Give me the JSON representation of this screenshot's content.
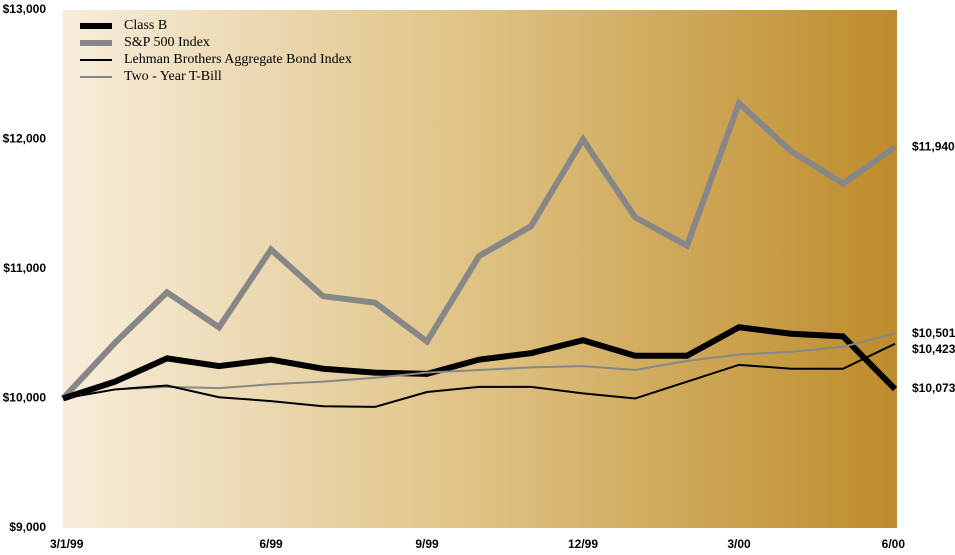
{
  "chart_data": {
    "type": "line",
    "categories": [
      "3/1/99",
      null,
      null,
      null,
      "6/99",
      null,
      null,
      "9/99",
      null,
      null,
      "12/99",
      null,
      null,
      "3/00",
      null,
      null,
      "6/00"
    ],
    "ylim": [
      9000,
      13000
    ],
    "yticks": [
      {
        "value": 9000,
        "label": "$9,000"
      },
      {
        "value": 10000,
        "label": "$10,000"
      },
      {
        "value": 11000,
        "label": "$11,000"
      },
      {
        "value": 12000,
        "label": "$12,000"
      },
      {
        "value": 13000,
        "label": "$13,000"
      }
    ],
    "grid": false,
    "legend": "upper left",
    "series": [
      {
        "name": "Class B",
        "color": "#000000",
        "width": 6,
        "values": [
          10000,
          10130,
          10310,
          10250,
          10300,
          10230,
          10200,
          10190,
          10300,
          10350,
          10450,
          10330,
          10330,
          10550,
          10500,
          10480,
          10073
        ],
        "value_labels": [
          null,
          null,
          null,
          null,
          null,
          null,
          null,
          null,
          null,
          null,
          null,
          null,
          null,
          null,
          null,
          null,
          "$10,073"
        ]
      },
      {
        "name": "S&P 500 Index",
        "color": "#878787",
        "width": 6,
        "values": [
          10000,
          10430,
          10820,
          10550,
          11150,
          10790,
          10740,
          10440,
          11100,
          11330,
          12000,
          11400,
          11180,
          12280,
          11910,
          11660,
          11940
        ],
        "value_labels": [
          null,
          null,
          null,
          null,
          null,
          null,
          null,
          null,
          null,
          null,
          null,
          null,
          null,
          null,
          null,
          null,
          "$11,940"
        ]
      },
      {
        "name": "Lehman Brothers Aggregate Bond Index",
        "color": "#000000",
        "width": 2,
        "values": [
          10000,
          10070,
          10100,
          10010,
          9980,
          9940,
          9935,
          10050,
          10090,
          10090,
          10040,
          10000,
          10130,
          10260,
          10230,
          10230,
          10423
        ],
        "value_labels": [
          null,
          null,
          null,
          null,
          null,
          null,
          null,
          null,
          null,
          null,
          null,
          null,
          null,
          null,
          null,
          null,
          "$10,423"
        ]
      },
      {
        "name": "Two - Year T-Bill",
        "color": "#878787",
        "width": 2,
        "values": [
          10000,
          10070,
          10090,
          10080,
          10110,
          10130,
          10160,
          10200,
          10220,
          10240,
          10250,
          10220,
          10290,
          10340,
          10360,
          10400,
          10501
        ],
        "value_labels": [
          null,
          null,
          null,
          null,
          null,
          null,
          null,
          null,
          null,
          null,
          null,
          null,
          null,
          null,
          null,
          null,
          "$10,501"
        ]
      }
    ]
  }
}
